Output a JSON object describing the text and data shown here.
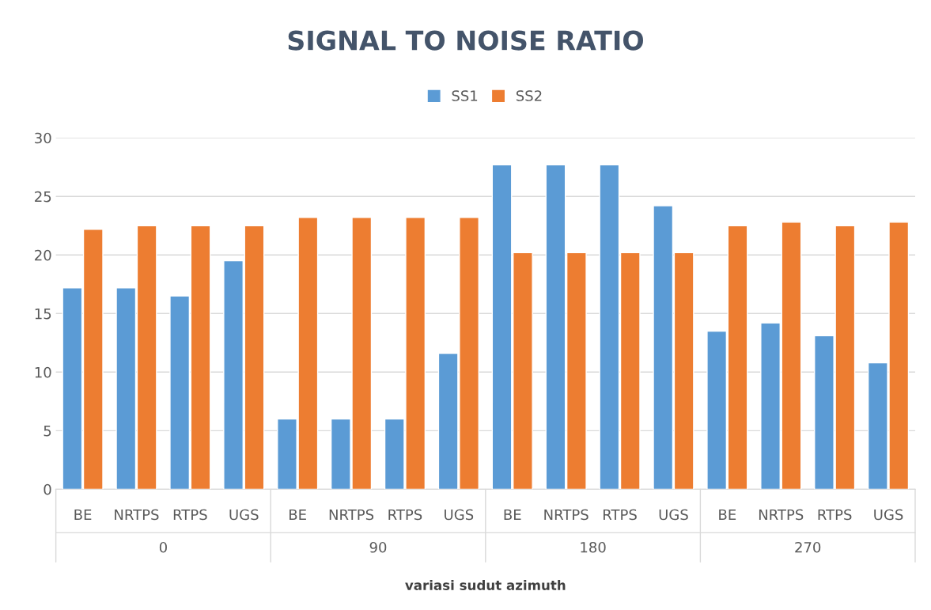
{
  "chart_data": {
    "type": "bar",
    "title": "SIGNAL TO NOISE RATIO",
    "xlabel": "variasi sudut azimuth",
    "categories": [
      "BE",
      "NRTPS",
      "RTPS",
      "UGS",
      "BE",
      "NRTPS",
      "RTPS",
      "UGS",
      "BE",
      "NRTPS",
      "RTPS",
      "UGS",
      "BE",
      "NRTPS",
      "RTPS",
      "UGS"
    ],
    "annotations": [
      "0",
      "90",
      "180",
      "270"
    ],
    "series": [
      {
        "name": "SS1",
        "color": "#5b9bd5",
        "values": [
          17.2,
          17.2,
          16.5,
          19.5,
          6.0,
          6.0,
          6.0,
          11.6,
          27.7,
          27.7,
          27.7,
          24.2,
          13.5,
          14.2,
          13.1,
          10.8
        ]
      },
      {
        "name": "SS2",
        "color": "#ed7d31",
        "values": [
          22.2,
          22.5,
          22.5,
          22.5,
          23.2,
          23.2,
          23.2,
          23.2,
          20.2,
          20.2,
          20.2,
          20.2,
          22.5,
          22.8,
          22.5,
          22.8
        ]
      }
    ],
    "ylim": [
      0,
      30
    ],
    "yticks": [
      0,
      5,
      10,
      15,
      20,
      25,
      30
    ],
    "grid": "y",
    "legend": "top"
  }
}
